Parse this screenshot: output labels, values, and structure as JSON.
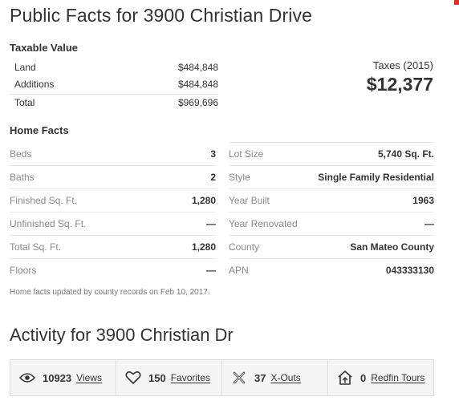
{
  "page_title": "Public Facts for 3900 Christian Drive",
  "taxable_value": {
    "heading": "Taxable Value",
    "rows": [
      {
        "label": "Land",
        "value": "$484,848"
      },
      {
        "label": "Additions",
        "value": "$484,848"
      },
      {
        "label": "Total",
        "value": "$969,696"
      }
    ]
  },
  "taxes": {
    "label": "Taxes (2015)",
    "value": "$12,377"
  },
  "home_facts": {
    "heading": "Home Facts",
    "left": [
      {
        "label": "Beds",
        "value": "3"
      },
      {
        "label": "Baths",
        "value": "2"
      },
      {
        "label": "Finished Sq. Ft.",
        "value": "1,280"
      },
      {
        "label": "Unfinished Sq. Ft.",
        "value": "—"
      },
      {
        "label": "Total Sq. Ft.",
        "value": "1,280"
      },
      {
        "label": "Floors",
        "value": "—"
      }
    ],
    "right": [
      {
        "label": "Lot Size",
        "value": "5,740 Sq. Ft."
      },
      {
        "label": "Style",
        "value": "Single Family Residential"
      },
      {
        "label": "Year Built",
        "value": "1963"
      },
      {
        "label": "Year Renovated",
        "value": "—"
      },
      {
        "label": "County",
        "value": "San Mateo County"
      },
      {
        "label": "APN",
        "value": "043333130"
      }
    ],
    "note": "Home facts updated by county records on Feb 10, 2017."
  },
  "activity": {
    "title": "Activity for 3900 Christian Dr",
    "stats": [
      {
        "icon": "eye-icon",
        "count": "10923",
        "label": "Views"
      },
      {
        "icon": "heart-icon",
        "count": "150",
        "label": "Favorites"
      },
      {
        "icon": "x-out-icon",
        "count": "37",
        "label": "X-Outs"
      },
      {
        "icon": "home-tour-icon",
        "count": "0",
        "label": "Redfin Tours"
      }
    ]
  },
  "colors": {
    "accent": "#d9312a",
    "text": "#333333",
    "muted": "#8a8a8a",
    "panel": "#f5f5f5"
  }
}
